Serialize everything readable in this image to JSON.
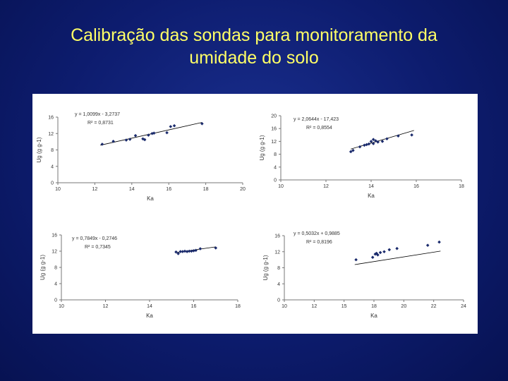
{
  "title": {
    "line1": "Calibração das sondas para monitoramento da",
    "line2": "umidade do solo"
  },
  "colors": {
    "title": "#ffff66",
    "marker": "#1a2a6c",
    "line": "#000000"
  },
  "chart_data": [
    {
      "type": "scatter",
      "xlabel": "Ka",
      "ylabel": "Ug (g g-1)",
      "xlim": [
        10,
        20
      ],
      "ylim": [
        0,
        16
      ],
      "xticks": [
        "10",
        "12",
        "14",
        "16",
        "18",
        "20"
      ],
      "yticks": [
        "0",
        "4",
        "8",
        "12",
        "16"
      ],
      "equation": "y = 1,0099x - 3,2737",
      "r2": "R² = 0,8731",
      "trend": {
        "slope": 1.0099,
        "intercept": -3.2737,
        "x": [
          12.3,
          17.8
        ]
      },
      "points": [
        [
          12.4,
          9.4
        ],
        [
          13.0,
          10.1
        ],
        [
          13.7,
          10.4
        ],
        [
          13.9,
          10.6
        ],
        [
          14.2,
          11.5
        ],
        [
          14.6,
          10.7
        ],
        [
          14.7,
          10.5
        ],
        [
          14.9,
          11.6
        ],
        [
          15.1,
          12.0
        ],
        [
          15.2,
          12.1
        ],
        [
          15.9,
          12.2
        ],
        [
          16.1,
          13.7
        ],
        [
          16.3,
          13.9
        ],
        [
          17.8,
          14.4
        ]
      ]
    },
    {
      "type": "scatter",
      "xlabel": "Ka",
      "ylabel": "Ug (g g-1)",
      "xlim": [
        10,
        18
      ],
      "ylim": [
        0,
        20
      ],
      "xticks": [
        "10",
        "12",
        "14",
        "16",
        "18"
      ],
      "yticks": [
        "0",
        "4",
        "8",
        "12",
        "16",
        "20"
      ],
      "equation": "y = 2,0644x - 17,423",
      "r2": "R² = 0,8554",
      "trend": {
        "slope": 2.0644,
        "intercept": -17.423,
        "x": [
          13.1,
          15.9
        ]
      },
      "points": [
        [
          13.1,
          8.8
        ],
        [
          13.2,
          9.2
        ],
        [
          13.5,
          10.3
        ],
        [
          13.7,
          10.8
        ],
        [
          13.8,
          11.0
        ],
        [
          13.9,
          11.2
        ],
        [
          14.0,
          12.0
        ],
        [
          14.1,
          11.3
        ],
        [
          14.1,
          12.6
        ],
        [
          14.2,
          12.2
        ],
        [
          14.3,
          11.8
        ],
        [
          14.5,
          12.0
        ],
        [
          14.7,
          12.8
        ],
        [
          15.2,
          13.7
        ],
        [
          15.8,
          14.0
        ]
      ]
    },
    {
      "type": "scatter",
      "xlabel": "Ka",
      "ylabel": "Ug (g g-1)",
      "xlim": [
        10,
        18
      ],
      "ylim": [
        0,
        16
      ],
      "xticks": [
        "10",
        "12",
        "14",
        "16",
        "18"
      ],
      "yticks": [
        "0",
        "4",
        "8",
        "12",
        "16"
      ],
      "equation": "y = 0,7849x - 0,2746",
      "r2": "R² = 0,7345",
      "trend": {
        "slope": 0.7849,
        "intercept": -0.2746,
        "x": [
          15.2,
          17.0
        ]
      },
      "points": [
        [
          15.2,
          11.8
        ],
        [
          15.3,
          11.4
        ],
        [
          15.4,
          11.9
        ],
        [
          15.5,
          11.9
        ],
        [
          15.6,
          12.0
        ],
        [
          15.7,
          11.9
        ],
        [
          15.8,
          12.0
        ],
        [
          15.9,
          12.0
        ],
        [
          16.0,
          12.1
        ],
        [
          16.1,
          12.2
        ],
        [
          16.3,
          12.6
        ],
        [
          17.0,
          12.8
        ]
      ]
    },
    {
      "type": "scatter",
      "xlabel": "Ka",
      "ylabel": "Ug (g g-1)",
      "xlim": [
        10,
        24
      ],
      "ylim": [
        0,
        16
      ],
      "xticks": [
        "10",
        "12",
        "15",
        "18",
        "20",
        "22",
        "24"
      ],
      "yticks": [
        "0",
        "4",
        "8",
        "12",
        "16"
      ],
      "equation": "y = 0,5032x + 0,9885",
      "r2": "R² = 0,8196",
      "trend": {
        "slope": 0.5032,
        "intercept": 0.9885,
        "x": [
          15.5,
          22.2
        ]
      },
      "points": [
        [
          15.6,
          10.0
        ],
        [
          16.9,
          10.6
        ],
        [
          17.1,
          11.4
        ],
        [
          17.2,
          11.6
        ],
        [
          17.3,
          11.2
        ],
        [
          17.5,
          11.8
        ],
        [
          17.8,
          12.0
        ],
        [
          18.2,
          12.5
        ],
        [
          18.8,
          12.8
        ],
        [
          21.2,
          13.6
        ],
        [
          22.1,
          14.4
        ]
      ]
    }
  ]
}
